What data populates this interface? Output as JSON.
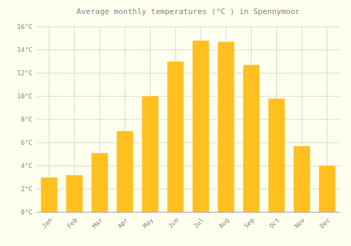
{
  "chart_data": {
    "type": "bar",
    "title": "Average monthly temperatures (°C ) in Spennymoor",
    "categories": [
      "Jan",
      "Feb",
      "Mar",
      "Apr",
      "May",
      "Jun",
      "Jul",
      "Aug",
      "Sep",
      "Oct",
      "Nov",
      "Dec"
    ],
    "values": [
      3.0,
      3.2,
      5.1,
      7.0,
      10.0,
      13.0,
      14.8,
      14.7,
      12.7,
      9.8,
      5.7,
      4.0
    ],
    "color": "#FFC020",
    "ylim": [
      0,
      16
    ],
    "yticks": [
      {
        "value": 0,
        "label": "0°C"
      },
      {
        "value": 2,
        "label": "2°C"
      },
      {
        "value": 4,
        "label": "4°C"
      },
      {
        "value": 6,
        "label": "6°C"
      },
      {
        "value": 8,
        "label": "8°C"
      },
      {
        "value": 10,
        "label": "10°C"
      },
      {
        "value": 12,
        "label": "12°C"
      },
      {
        "value": 14,
        "label": "14°C"
      },
      {
        "value": 16,
        "label": "16°C"
      }
    ],
    "grid": true
  }
}
